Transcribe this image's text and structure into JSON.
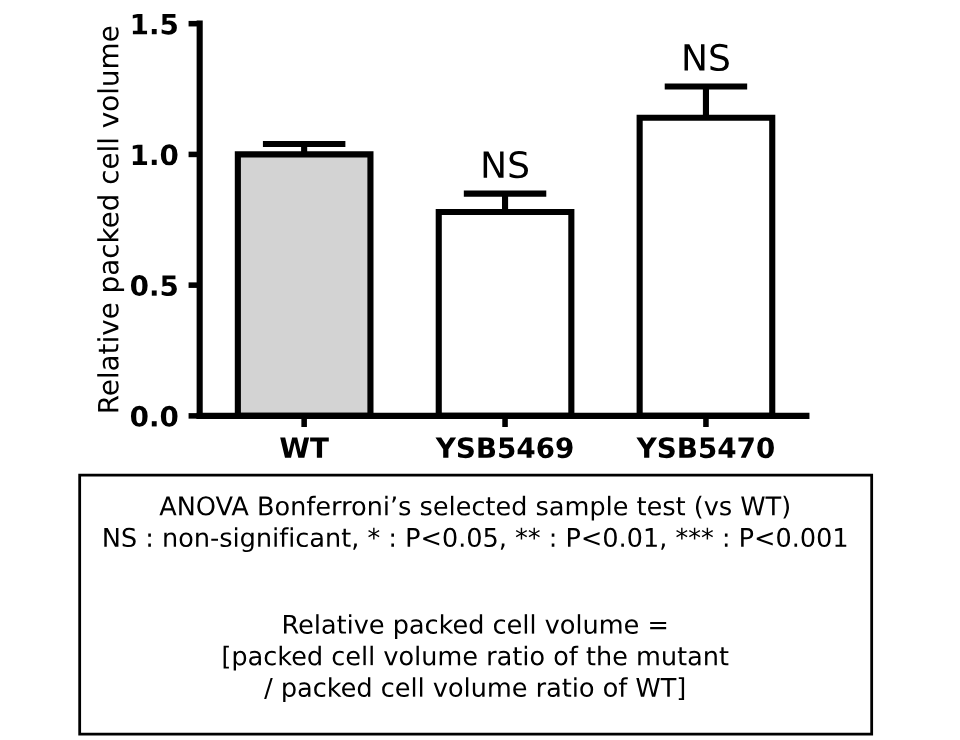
{
  "chart_data": {
    "type": "bar",
    "ylabel": "Relative packed cell volume",
    "categories": [
      "WT",
      "YSB5469",
      "YSB5470"
    ],
    "values": [
      1.0,
      0.78,
      1.14
    ],
    "colors": [
      "#d3d3d3",
      "#ffffff",
      "#ffffff"
    ],
    "errors": [
      [
        1.0,
        1.04
      ],
      [
        0.78,
        0.85
      ],
      [
        1.14,
        1.26
      ]
    ],
    "ylim": [
      0,
      1.5
    ],
    "yticks": [
      {
        "value": 0,
        "label": "0.0"
      },
      0.5,
      {
        "value": 1,
        "label": "1.0"
      },
      1.5
    ],
    "grid": false,
    "legend": false,
    "annotations": [
      {
        "text": "NS",
        "x": "YSB5469",
        "y": 0.85
      },
      {
        "text": "NS",
        "x": "YSB5470",
        "y": 1.26
      },
      "ANOVA Bonferroni’s selected sample test (vs WT)\nNS : non-significant, * : P<0.05, ** : P<0.01, *** : P<0.001",
      "Relative packed cell volume =\n[packed cell volume ratio of the mutant\n/ packed cell volume ratio of WT]"
    ]
  }
}
